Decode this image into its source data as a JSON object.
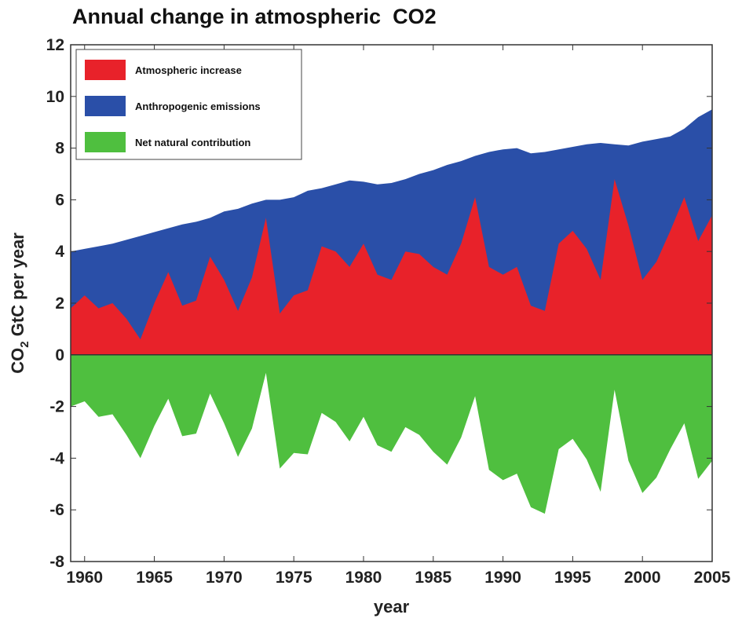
{
  "chart_data": {
    "type": "area",
    "title": "Annual change in atmospheric  CO2",
    "xlabel": "year",
    "ylabel_main": "CO",
    "ylabel_sub": "2",
    "ylabel_rest": " GtC per year",
    "xlim": [
      1959,
      2005
    ],
    "ylim": [
      -8,
      12
    ],
    "xticks": [
      1960,
      1965,
      1970,
      1975,
      1980,
      1985,
      1990,
      1995,
      2000,
      2005
    ],
    "yticks": [
      -8,
      -6,
      -4,
      -2,
      0,
      2,
      4,
      6,
      8,
      10,
      12
    ],
    "grid": false,
    "legend_position": "top-left",
    "x": [
      1959,
      1960,
      1961,
      1962,
      1963,
      1964,
      1965,
      1966,
      1967,
      1968,
      1969,
      1970,
      1971,
      1972,
      1973,
      1974,
      1975,
      1976,
      1977,
      1978,
      1979,
      1980,
      1981,
      1982,
      1983,
      1984,
      1985,
      1986,
      1987,
      1988,
      1989,
      1990,
      1991,
      1992,
      1993,
      1994,
      1995,
      1996,
      1997,
      1998,
      1999,
      2000,
      2001,
      2002,
      2003,
      2004,
      2005
    ],
    "series": [
      {
        "name": "Anthropogenic emissions",
        "color": "#2a4fa8",
        "values": [
          4.0,
          4.1,
          4.2,
          4.3,
          4.45,
          4.6,
          4.75,
          4.9,
          5.05,
          5.15,
          5.3,
          5.55,
          5.65,
          5.85,
          6.0,
          6.0,
          6.1,
          6.35,
          6.45,
          6.6,
          6.75,
          6.7,
          6.6,
          6.65,
          6.8,
          7.0,
          7.15,
          7.35,
          7.5,
          7.7,
          7.85,
          7.95,
          8.0,
          7.8,
          7.85,
          7.95,
          8.05,
          8.15,
          8.2,
          8.15,
          8.1,
          8.25,
          8.35,
          8.45,
          8.75,
          9.2,
          9.5
        ]
      },
      {
        "name": "Atmospheric increase",
        "color": "#e8222a",
        "values": [
          1.8,
          2.3,
          1.8,
          2.0,
          1.4,
          0.6,
          2.0,
          3.2,
          1.9,
          2.1,
          3.8,
          2.9,
          1.7,
          3.0,
          5.3,
          1.6,
          2.3,
          2.5,
          4.2,
          4.0,
          3.4,
          4.3,
          3.1,
          2.9,
          4.0,
          3.9,
          3.4,
          3.1,
          4.3,
          6.1,
          3.4,
          3.1,
          3.4,
          1.9,
          1.7,
          4.3,
          4.8,
          4.1,
          2.9,
          6.8,
          5.0,
          2.9,
          3.6,
          4.8,
          6.1,
          4.4,
          5.4
        ]
      },
      {
        "name": "Net natural contribution",
        "color": "#4fbf3f",
        "values": [
          -2.0,
          -1.8,
          -2.4,
          -2.3,
          -3.1,
          -4.0,
          -2.75,
          -1.7,
          -3.15,
          -3.05,
          -1.5,
          -2.65,
          -3.95,
          -2.85,
          -0.7,
          -4.4,
          -3.8,
          -3.85,
          -2.25,
          -2.6,
          -3.35,
          -2.4,
          -3.5,
          -3.75,
          -2.8,
          -3.1,
          -3.75,
          -4.25,
          -3.2,
          -1.6,
          -4.45,
          -4.85,
          -4.6,
          -5.9,
          -6.15,
          -3.65,
          -3.25,
          -4.05,
          -5.3,
          -1.35,
          -4.1,
          -5.35,
          -4.75,
          -3.65,
          -2.65,
          -4.8,
          -4.1
        ]
      }
    ]
  }
}
